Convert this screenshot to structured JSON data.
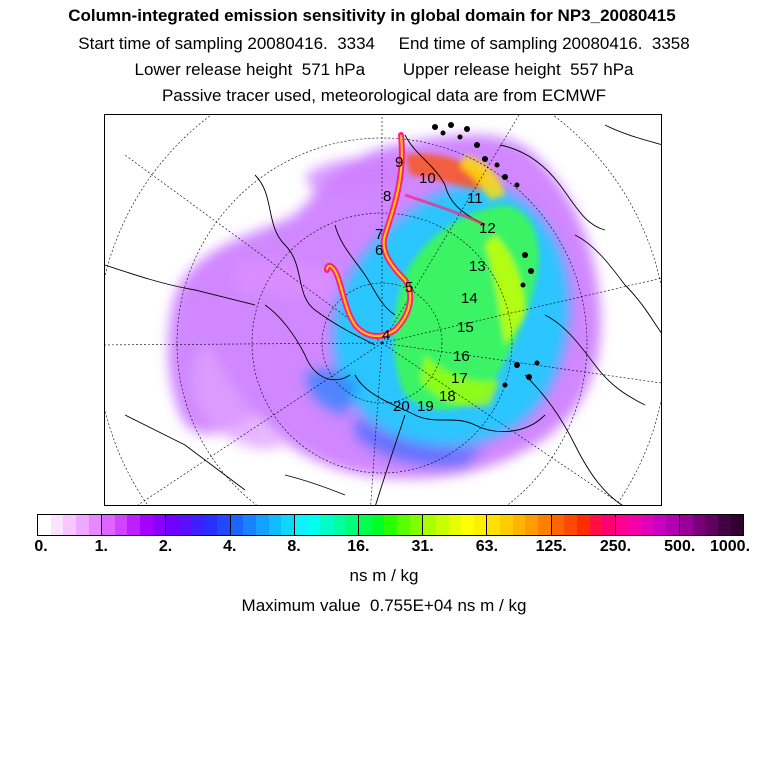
{
  "header": {
    "title": "Column-integrated emission sensitivity in global domain for NP3_20080415",
    "line1": "Start time of sampling 20080416.  3334     End time of sampling 20080416.  3358",
    "line2": "Lower release height  571 hPa        Upper release height  557 hPa",
    "line3": "Passive tracer used, meteorological data are from ECMWF"
  },
  "map": {
    "trajectory_labels": [
      "4",
      "5",
      "6",
      "7",
      "8",
      "9",
      "10",
      "11",
      "12",
      "13",
      "14",
      "15",
      "16",
      "17",
      "18",
      "19",
      "20"
    ]
  },
  "colorbar": {
    "tick_labels": [
      "0.",
      "1.",
      "2.",
      "4.",
      "8.",
      "16.",
      "31.",
      "63.",
      "125.",
      "250.",
      "500.",
      "1000."
    ],
    "colors": [
      "#ffffff",
      "#fbe4ff",
      "#f7c8ff",
      "#f0a8ff",
      "#e788ff",
      "#dc66ff",
      "#d043ff",
      "#bf1fff",
      "#a600ff",
      "#8a00ff",
      "#7000ff",
      "#5a10ff",
      "#3d1fff",
      "#2a2eff",
      "#1f48ff",
      "#1a64ff",
      "#1882ff",
      "#14a0ff",
      "#10bcff",
      "#0ed6ff",
      "#10f0ff",
      "#00ffee",
      "#00ffc8",
      "#00ffa0",
      "#00ff78",
      "#00ff50",
      "#00ff28",
      "#28ff00",
      "#58ff00",
      "#80ff00",
      "#a8ff00",
      "#c8ff00",
      "#e8ff00",
      "#ffff00",
      "#fff000",
      "#ffe000",
      "#ffcc00",
      "#ffb400",
      "#ff9c00",
      "#ff8000",
      "#ff6400",
      "#ff4800",
      "#ff2c00",
      "#ff1040",
      "#ff0070",
      "#ff0090",
      "#f400a8",
      "#e000b8",
      "#c800c0",
      "#b000b0",
      "#980098",
      "#7a007a",
      "#600060",
      "#440044",
      "#300030"
    ]
  },
  "units": "ns m / kg",
  "max_value": "Maximum value  0.755E+04 ns m / kg"
}
